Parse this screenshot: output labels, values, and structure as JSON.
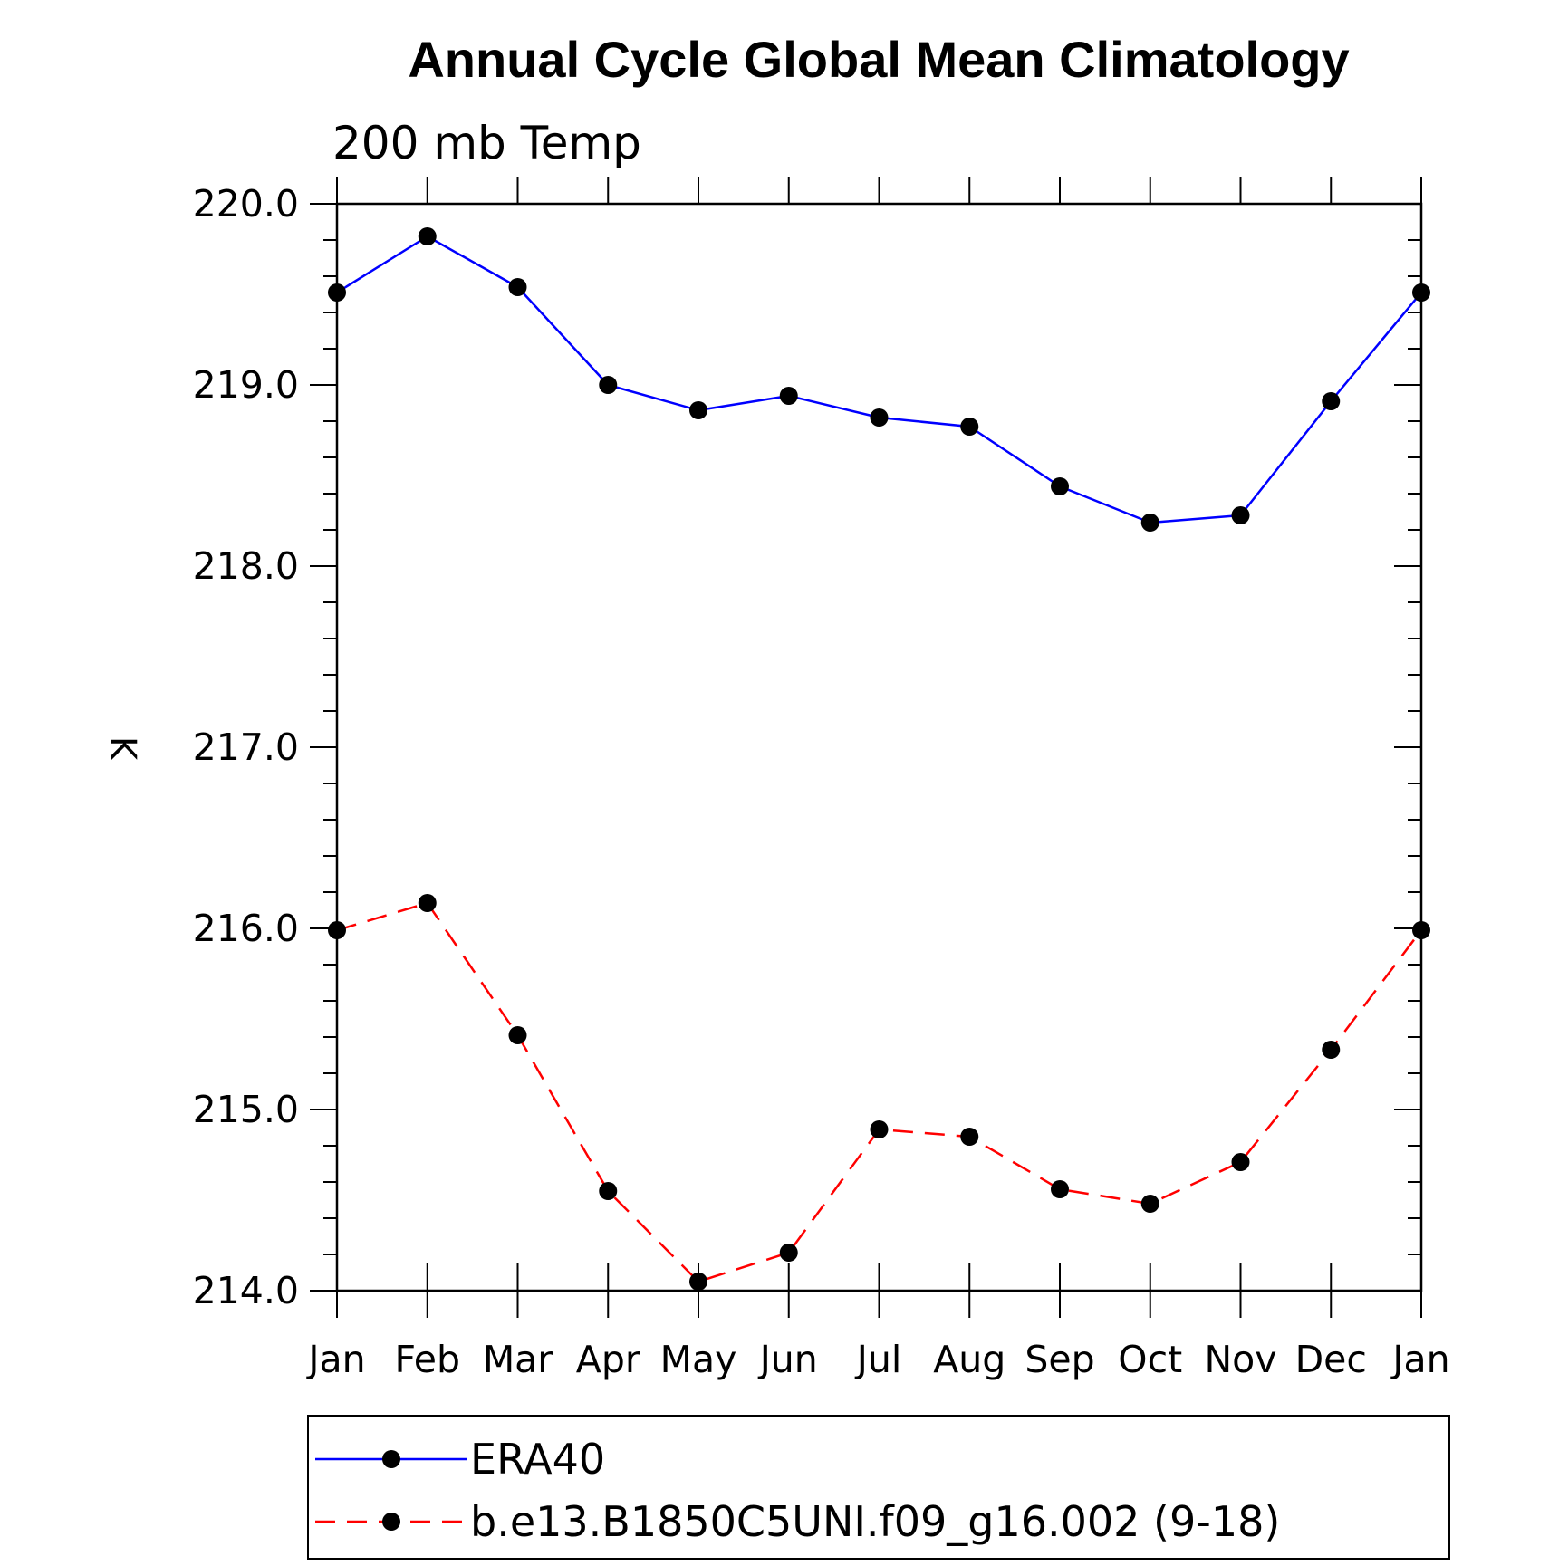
{
  "chart_data": {
    "type": "line",
    "title": "Annual Cycle Global Mean Climatology",
    "subtitle": "200 mb Temp",
    "xlabel": "",
    "ylabel": "K",
    "categories": [
      "Jan",
      "Feb",
      "Mar",
      "Apr",
      "May",
      "Jun",
      "Jul",
      "Aug",
      "Sep",
      "Oct",
      "Nov",
      "Dec",
      "Jan"
    ],
    "ylim": [
      214.0,
      220.0
    ],
    "yticks": [
      "214.0",
      "215.0",
      "216.0",
      "217.0",
      "218.0",
      "219.0",
      "220.0"
    ],
    "grid": false,
    "legend_position": "bottom",
    "series": [
      {
        "name": "ERA40",
        "color": "#0000ff",
        "line_style": "solid",
        "marker": "filled-circle",
        "values": [
          219.51,
          219.82,
          219.54,
          219.0,
          218.86,
          218.94,
          218.82,
          218.77,
          218.44,
          218.24,
          218.28,
          218.91,
          219.51
        ]
      },
      {
        "name": "b.e13.B1850C5UNI.f09_g16.002 (9-18)",
        "color": "#ff0000",
        "line_style": "dashed",
        "marker": "filled-circle",
        "values": [
          215.99,
          216.14,
          215.41,
          214.55,
          214.05,
          214.21,
          214.89,
          214.85,
          214.56,
          214.48,
          214.71,
          215.33,
          215.99
        ]
      }
    ]
  }
}
